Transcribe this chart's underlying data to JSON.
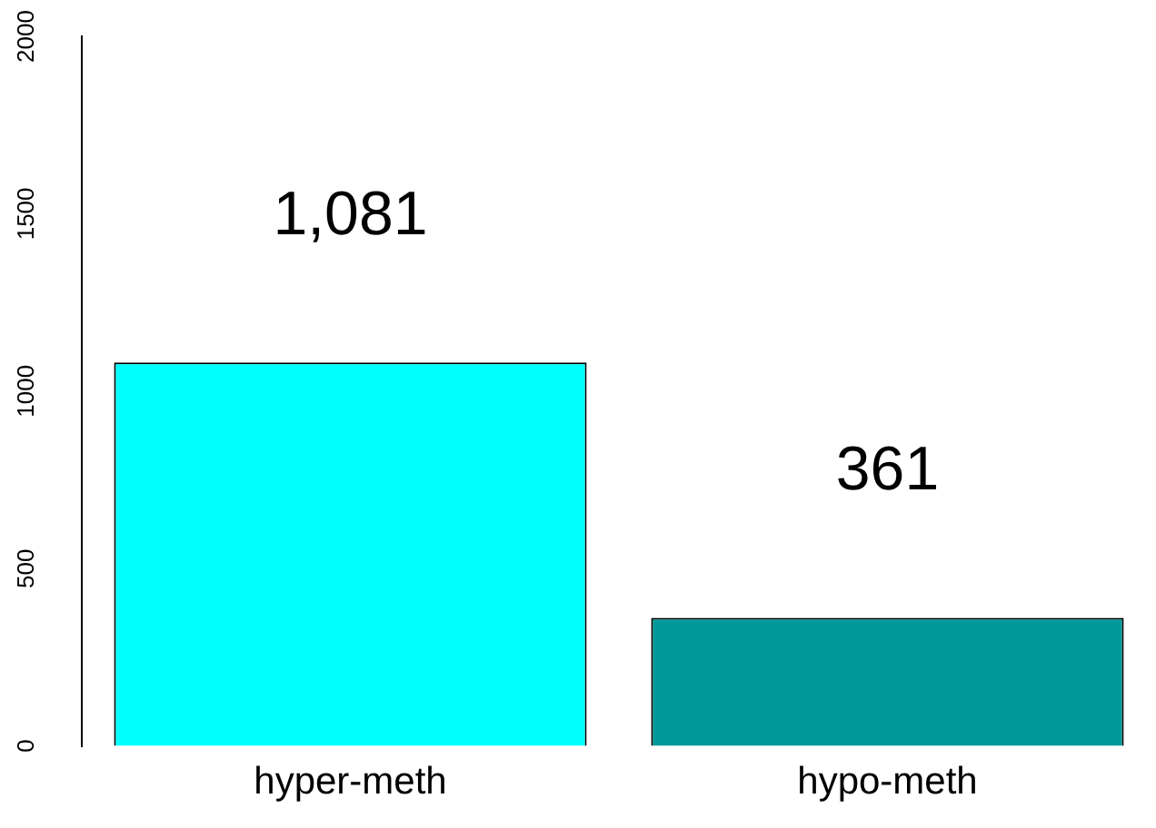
{
  "chart_data": {
    "type": "bar",
    "categories": [
      "hyper-meth",
      "hypo-meth"
    ],
    "values": [
      1081,
      361
    ],
    "colors": [
      "#00ffff",
      "#009999"
    ],
    "value_labels": [
      "1,081",
      "361"
    ],
    "ylim": [
      0,
      2000
    ],
    "yticks": [
      0,
      500,
      1000,
      1500,
      2000
    ],
    "grid": false,
    "legend": false
  }
}
